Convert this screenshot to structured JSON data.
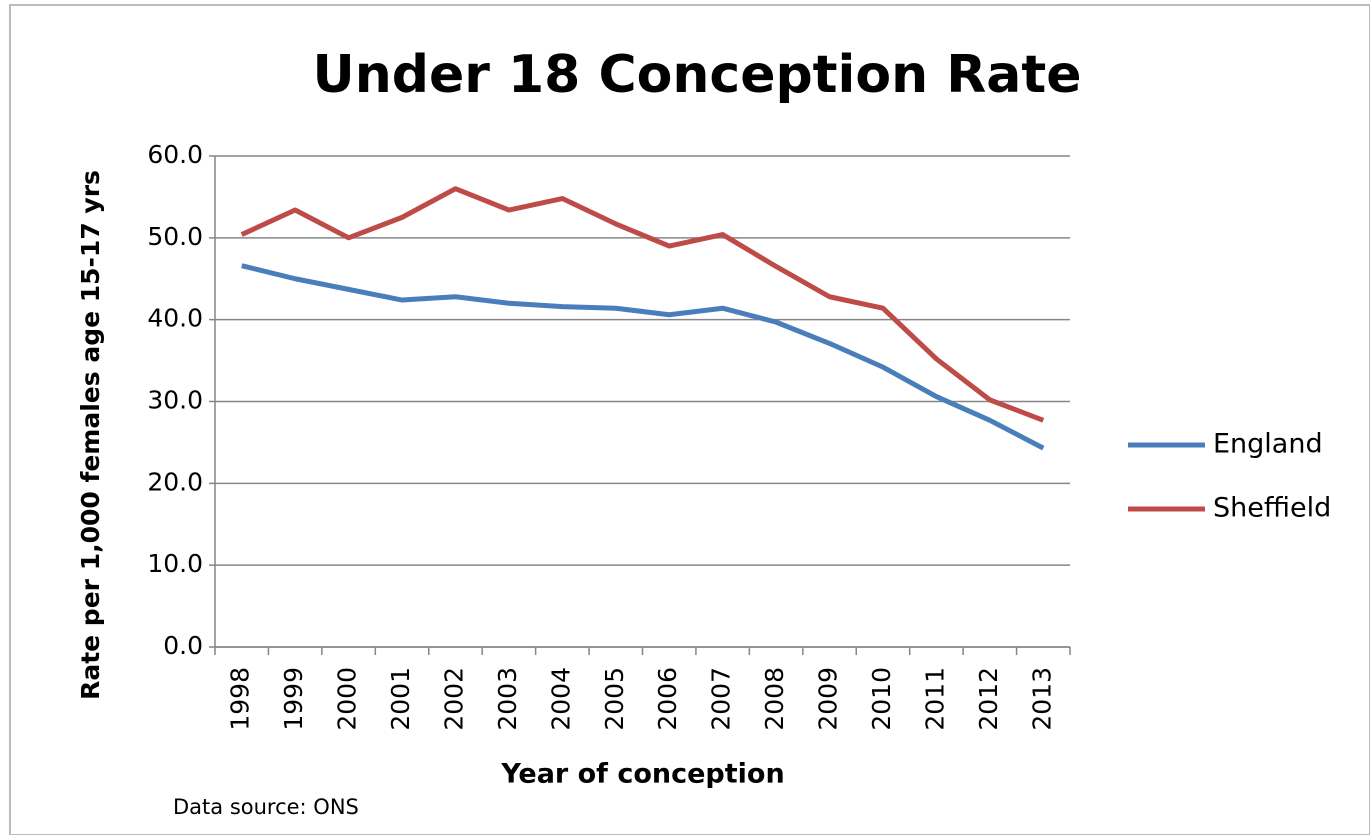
{
  "chart_data": {
    "type": "line",
    "title": "Under 18 Conception Rate",
    "y_label": "Rate per 1,000 females age 15-17 yrs",
    "x_label": "Year of conception",
    "source": "Data source: ONS",
    "categories": [
      "1998",
      "1999",
      "2000",
      "2001",
      "2002",
      "2003",
      "2004",
      "2005",
      "2006",
      "2007",
      "2008",
      "2009",
      "2010",
      "2011",
      "2012",
      "2013"
    ],
    "series": [
      {
        "name": "England",
        "color": "#4a7ebb",
        "values": [
          46.6,
          45.0,
          43.7,
          42.4,
          42.8,
          42.0,
          41.6,
          41.4,
          40.6,
          41.4,
          39.7,
          37.1,
          34.2,
          30.6,
          27.7,
          24.3
        ]
      },
      {
        "name": "Sheffield",
        "color": "#be4b48",
        "values": [
          50.4,
          53.4,
          50.0,
          52.5,
          56.0,
          53.4,
          54.8,
          51.7,
          49.0,
          50.4,
          46.5,
          42.8,
          41.4,
          35.2,
          30.2,
          27.7
        ]
      }
    ],
    "ylim": [
      0,
      60
    ],
    "yticks": [
      {
        "value": 0,
        "label": "0.0"
      },
      {
        "value": 10,
        "label": "10.0"
      },
      {
        "value": 20,
        "label": "20.0"
      },
      {
        "value": 30,
        "label": "30.0"
      },
      {
        "value": 40,
        "label": "40.0"
      },
      {
        "value": 50,
        "label": "50.0"
      },
      {
        "value": 60,
        "label": "60.0"
      }
    ],
    "grid": true,
    "legend": "right"
  }
}
